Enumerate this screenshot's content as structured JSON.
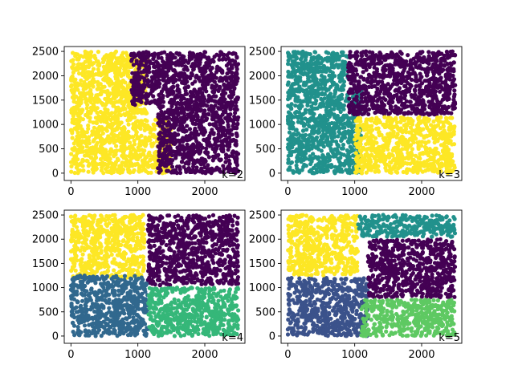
{
  "figure": {
    "background": "#ffffff"
  },
  "colors": {
    "purple": "#440154",
    "dark_blue": "#31688e",
    "blue": "#3b528b",
    "teal": "#21918c",
    "green": "#35b779",
    "light_green": "#5ec962",
    "yellow": "#fde725"
  },
  "chart_data": [
    {
      "type": "scatter",
      "k_label": "k=2",
      "xlim": [
        -100,
        2600
      ],
      "ylim": [
        -150,
        2600
      ],
      "xticks": [
        0,
        1000,
        2000
      ],
      "xtick_labels": [
        "0",
        "1000",
        "2000"
      ],
      "yticks": [
        0,
        500,
        1000,
        1500,
        2000,
        2500
      ],
      "ytick_labels": [
        "0",
        "500",
        "1000",
        "1500",
        "2000",
        "2500"
      ],
      "grid": false,
      "clusters": [
        {
          "color": "#fde725",
          "regions": [
            {
              "x": [
                0,
                850
              ],
              "y": [
                1700,
                2500
              ]
            },
            {
              "x": [
                0,
                1000
              ],
              "y": [
                0,
                1700
              ]
            },
            {
              "x": [
                1000,
                1500
              ],
              "y": [
                0,
                1100
              ]
            },
            {
              "x": [
                850,
                1150
              ],
              "y": [
                1200,
                2400
              ]
            }
          ]
        },
        {
          "color": "#440154",
          "regions": [
            {
              "x": [
                900,
                2500
              ],
              "y": [
                1400,
                2500
              ]
            },
            {
              "x": [
                1300,
                2500
              ],
              "y": [
                0,
                1400
              ]
            }
          ]
        }
      ]
    },
    {
      "type": "scatter",
      "k_label": "k=3",
      "xlim": [
        -100,
        2600
      ],
      "ylim": [
        -150,
        2600
      ],
      "xticks": [
        0,
        1000,
        2000
      ],
      "xtick_labels": [
        "0",
        "1000",
        "2000"
      ],
      "yticks": [
        0,
        500,
        1000,
        1500,
        2000,
        2500
      ],
      "ytick_labels": [
        "0",
        "500",
        "1000",
        "1500",
        "2000",
        "2500"
      ],
      "grid": false,
      "clusters": [
        {
          "color": "#21918c",
          "regions": [
            {
              "x": [
                0,
                900
              ],
              "y": [
                1700,
                2500
              ]
            },
            {
              "x": [
                0,
                1100
              ],
              "y": [
                0,
                1700
              ]
            }
          ]
        },
        {
          "color": "#440154",
          "regions": [
            {
              "x": [
                900,
                2500
              ],
              "y": [
                1200,
                2500
              ]
            }
          ]
        },
        {
          "color": "#fde725",
          "regions": [
            {
              "x": [
                1000,
                2500
              ],
              "y": [
                0,
                1150
              ]
            }
          ]
        }
      ]
    },
    {
      "type": "scatter",
      "k_label": "k=4",
      "xlim": [
        -100,
        2600
      ],
      "ylim": [
        -150,
        2600
      ],
      "xticks": [
        0,
        1000,
        2000
      ],
      "xtick_labels": [
        "0",
        "1000",
        "2000"
      ],
      "yticks": [
        0,
        500,
        1000,
        1500,
        2000,
        2500
      ],
      "ytick_labels": [
        "0",
        "500",
        "1000",
        "1500",
        "2000",
        "2500"
      ],
      "grid": false,
      "clusters": [
        {
          "color": "#fde725",
          "regions": [
            {
              "x": [
                0,
                1100
              ],
              "y": [
                1200,
                2500
              ]
            }
          ]
        },
        {
          "color": "#31688e",
          "regions": [
            {
              "x": [
                0,
                1150
              ],
              "y": [
                0,
                1250
              ]
            }
          ]
        },
        {
          "color": "#440154",
          "regions": [
            {
              "x": [
                1150,
                2500
              ],
              "y": [
                1050,
                2500
              ]
            }
          ]
        },
        {
          "color": "#35b779",
          "regions": [
            {
              "x": [
                1150,
                2500
              ],
              "y": [
                0,
                1000
              ]
            }
          ]
        }
      ]
    },
    {
      "type": "scatter",
      "k_label": "k=5",
      "xlim": [
        -100,
        2600
      ],
      "ylim": [
        -150,
        2600
      ],
      "xticks": [
        0,
        1000,
        2000
      ],
      "xtick_labels": [
        "0",
        "1000",
        "2000"
      ],
      "yticks": [
        0,
        500,
        1000,
        1500,
        2000,
        2500
      ],
      "ytick_labels": [
        "0",
        "500",
        "1000",
        "1500",
        "2000",
        "2500"
      ],
      "grid": false,
      "clusters": [
        {
          "color": "#fde725",
          "regions": [
            {
              "x": [
                0,
                1050
              ],
              "y": [
                1250,
                2500
              ]
            }
          ]
        },
        {
          "color": "#3b528b",
          "regions": [
            {
              "x": [
                0,
                1200
              ],
              "y": [
                0,
                1200
              ]
            }
          ]
        },
        {
          "color": "#21918c",
          "regions": [
            {
              "x": [
                1050,
                2500
              ],
              "y": [
                2050,
                2500
              ]
            }
          ]
        },
        {
          "color": "#440154",
          "regions": [
            {
              "x": [
                1200,
                2500
              ],
              "y": [
                800,
                2000
              ]
            }
          ]
        },
        {
          "color": "#5ec962",
          "regions": [
            {
              "x": [
                1100,
                2500
              ],
              "y": [
                0,
                750
              ]
            }
          ]
        }
      ]
    }
  ]
}
